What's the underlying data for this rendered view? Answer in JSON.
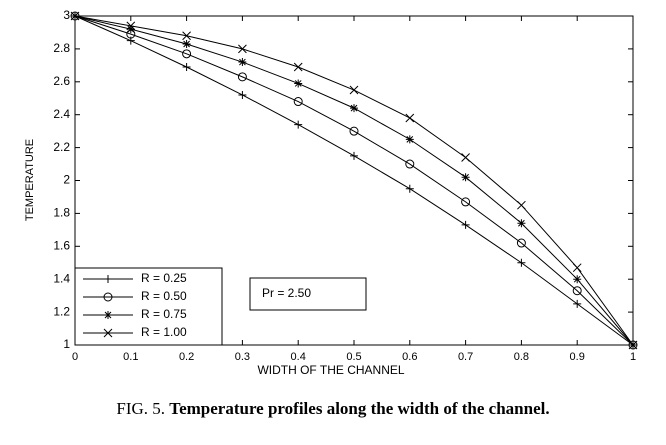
{
  "chart_data": {
    "type": "line",
    "x_label": "WIDTH OF THE CHANNEL",
    "y_label": "TEMPERATURE",
    "annotation": "Pr = 2.50",
    "caption_prefix": "FIG. 5.",
    "caption": "Temperature profiles along the width of the channel.",
    "x": [
      0,
      0.1,
      0.2,
      0.3,
      0.4,
      0.5,
      0.6,
      0.7,
      0.8,
      0.9,
      1
    ],
    "series": [
      {
        "name": "R = 0.25",
        "color": "#000000",
        "marker": "+",
        "values": [
          3,
          2.85,
          2.69,
          2.52,
          2.34,
          2.15,
          1.95,
          1.73,
          1.5,
          1.25,
          1
        ]
      },
      {
        "name": "R = 0.50",
        "color": "#000000",
        "marker": "o",
        "values": [
          3,
          2.89,
          2.77,
          2.63,
          2.48,
          2.3,
          2.1,
          1.87,
          1.62,
          1.33,
          1
        ]
      },
      {
        "name": "R = 0.75",
        "color": "#000000",
        "marker": "*",
        "values": [
          3,
          2.92,
          2.83,
          2.72,
          2.59,
          2.44,
          2.25,
          2.02,
          1.74,
          1.4,
          1
        ]
      },
      {
        "name": "R = 1.00",
        "color": "#000000",
        "marker": "x",
        "values": [
          3,
          2.94,
          2.88,
          2.8,
          2.69,
          2.55,
          2.38,
          2.14,
          1.85,
          1.47,
          1
        ]
      }
    ],
    "xlim": [
      0,
      1
    ],
    "xticks": [
      0,
      0.1,
      0.2,
      0.3,
      0.4,
      0.5,
      0.6,
      0.7,
      0.8,
      0.9,
      1
    ],
    "ylim": [
      1,
      3
    ],
    "yticks": [
      1,
      1.2,
      1.4,
      1.6,
      1.8,
      2,
      2.2,
      2.4,
      2.6,
      2.8,
      3
    ],
    "grid": false,
    "legend": "lower left"
  }
}
